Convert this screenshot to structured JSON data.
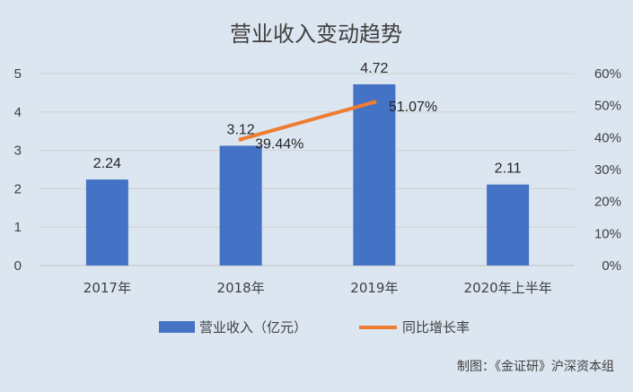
{
  "chart_data": {
    "type": "bar",
    "title": "营业收入变动趋势",
    "categories": [
      "2017年",
      "2018年",
      "2019年",
      "2020年上半年"
    ],
    "series": [
      {
        "name": "营业收入（亿元）",
        "type": "bar",
        "axis": "left",
        "color": "#4472c4",
        "values": [
          2.24,
          3.12,
          4.72,
          2.11
        ],
        "labels": [
          "2.24",
          "3.12",
          "4.72",
          "2.11"
        ]
      },
      {
        "name": "同比增长率",
        "type": "line",
        "axis": "right",
        "color": "#ed7d31",
        "values": [
          null,
          39.44,
          51.07,
          null
        ],
        "labels": [
          "",
          "39.44%",
          "51.07%",
          ""
        ]
      }
    ],
    "y_left": {
      "min": 0,
      "max": 5,
      "ticks": [
        "0",
        "1",
        "2",
        "3",
        "4",
        "5"
      ]
    },
    "y_right": {
      "min": 0,
      "max": 60,
      "ticks": [
        "0%",
        "10%",
        "20%",
        "30%",
        "40%",
        "50%",
        "60%"
      ]
    },
    "grid": true,
    "legend_position": "bottom",
    "credit": "制图：《金证研》沪深资本组"
  }
}
